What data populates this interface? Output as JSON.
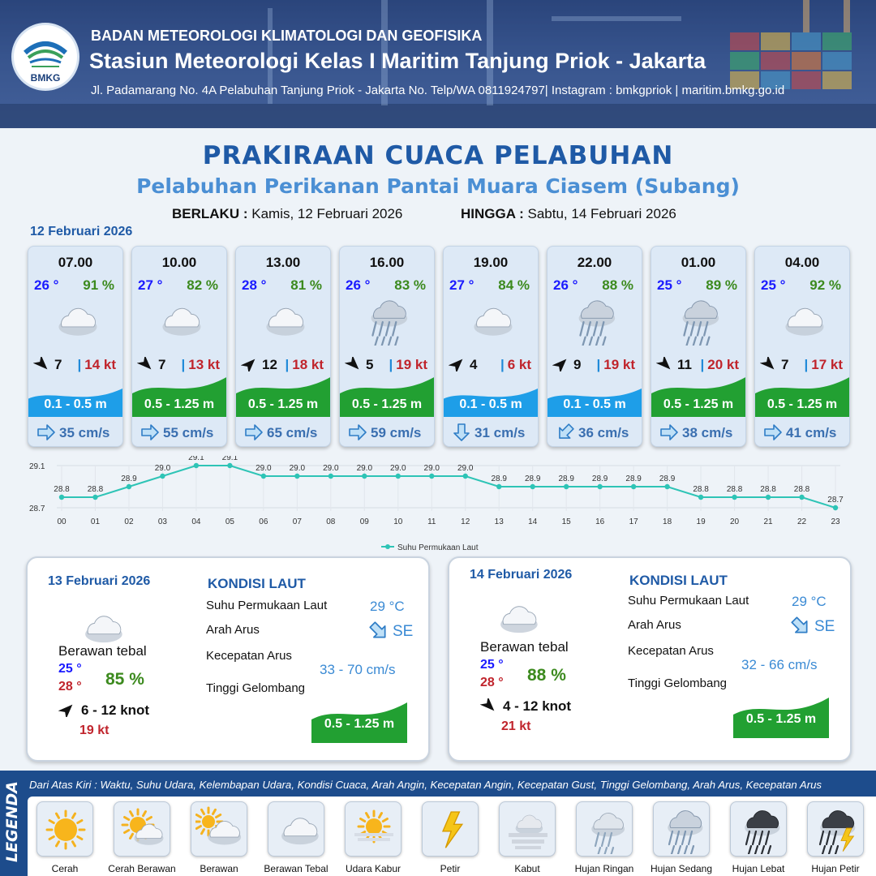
{
  "header": {
    "logo_text": "BMKG",
    "agency": "BADAN METEOROLOGI KLIMATOLOGI DAN GEOFISIKA",
    "station": "Stasiun Meteorologi Kelas I Maritim Tanjung Priok - Jakarta",
    "address": "Jl. Padamarang No. 4A Pelabuhan Tanjung Priok - Jakarta No. Telp/WA 0811924797| Instagram : bmkgpriok | maritim.bmkg.go.id"
  },
  "title": "PRAKIRAAN CUACA PELABUHAN",
  "subtitle": "Pelabuhan Perikanan Pantai Muara Ciasem (Subang)",
  "validity": {
    "from_label": "BERLAKU :",
    "from_value": "Kamis, 12 Februari 2026",
    "to_label": "HINGGA :",
    "to_value": "Sabtu, 14 Februari 2026"
  },
  "day1_date": "12 Februari 2026",
  "forecasts": [
    {
      "time": "07.00",
      "temp": "26 °",
      "humidity": "91 %",
      "icon": "berawan-tebal-icon",
      "wind_dir_deg": 45,
      "wind": "7",
      "gust": "14 kt",
      "wave": "0.1 - 0.5 m",
      "wave_level": "low",
      "current_dir_deg": 0,
      "current": "35 cm/s"
    },
    {
      "time": "10.00",
      "temp": "27 °",
      "humidity": "82 %",
      "icon": "berawan-tebal-icon",
      "wind_dir_deg": 45,
      "wind": "7",
      "gust": "13 kt",
      "wave": "0.5 - 1.25 m",
      "wave_level": "mid",
      "current_dir_deg": 0,
      "current": "55 cm/s"
    },
    {
      "time": "13.00",
      "temp": "28 °",
      "humidity": "81 %",
      "icon": "berawan-tebal-icon",
      "wind_dir_deg": -45,
      "wind": "12",
      "gust": "18 kt",
      "wave": "0.5 - 1.25 m",
      "wave_level": "mid",
      "current_dir_deg": 0,
      "current": "65 cm/s"
    },
    {
      "time": "16.00",
      "temp": "26 °",
      "humidity": "83 %",
      "icon": "hujan-sedang-icon",
      "wind_dir_deg": 45,
      "wind": "5",
      "gust": "19 kt",
      "wave": "0.5 - 1.25 m",
      "wave_level": "mid",
      "current_dir_deg": 0,
      "current": "59 cm/s"
    },
    {
      "time": "19.00",
      "temp": "27 °",
      "humidity": "84 %",
      "icon": "berawan-tebal-icon",
      "wind_dir_deg": -45,
      "wind": "4",
      "gust": "6 kt",
      "wave": "0.1 - 0.5 m",
      "wave_level": "low",
      "current_dir_deg": 90,
      "current": "31 cm/s"
    },
    {
      "time": "22.00",
      "temp": "26 °",
      "humidity": "88 %",
      "icon": "hujan-sedang-icon",
      "wind_dir_deg": -45,
      "wind": "9",
      "gust": "19 kt",
      "wave": "0.1 - 0.5 m",
      "wave_level": "low",
      "current_dir_deg": 135,
      "current": "36 cm/s"
    },
    {
      "time": "01.00",
      "temp": "25 °",
      "humidity": "89 %",
      "icon": "hujan-sedang-icon",
      "wind_dir_deg": 45,
      "wind": "11",
      "gust": "20 kt",
      "wave": "0.5 - 1.25 m",
      "wave_level": "mid",
      "current_dir_deg": 0,
      "current": "38 cm/s"
    },
    {
      "time": "04.00",
      "temp": "25 °",
      "humidity": "92 %",
      "icon": "berawan-tebal-icon",
      "wind_dir_deg": 45,
      "wind": "7",
      "gust": "17 kt",
      "wave": "0.5 - 1.25 m",
      "wave_level": "mid",
      "current_dir_deg": 0,
      "current": "41 cm/s"
    }
  ],
  "chart_data": {
    "type": "line",
    "x": [
      "00",
      "01",
      "02",
      "03",
      "04",
      "05",
      "06",
      "07",
      "08",
      "09",
      "10",
      "11",
      "12",
      "13",
      "14",
      "15",
      "16",
      "17",
      "18",
      "19",
      "20",
      "21",
      "22",
      "23"
    ],
    "series": [
      {
        "name": "Suhu Permukaan Laut",
        "values": [
          28.8,
          28.8,
          28.9,
          29.0,
          29.1,
          29.1,
          29.0,
          29.0,
          29.0,
          29.0,
          29.0,
          29.0,
          29.0,
          28.9,
          28.9,
          28.9,
          28.9,
          28.9,
          28.9,
          28.8,
          28.8,
          28.8,
          28.8,
          28.7
        ]
      }
    ],
    "data_labels": [
      "28.8",
      "28.8",
      "28.9",
      "29.0",
      "29.1",
      "29.1",
      "29.0",
      "29.0",
      "29.0",
      "29.0",
      "29.0",
      "29.0",
      "29.0",
      "28.9",
      "28.9",
      "28.9",
      "28.9",
      "28.9",
      "28.9",
      "28.8",
      "28.8",
      "28.8",
      "28.8",
      "28.7"
    ],
    "y_ticks": [
      "29.1",
      "28.7"
    ],
    "ylim": [
      28.7,
      29.1
    ],
    "grid": true,
    "legend_position": "bottom",
    "color": "#2ec4b6"
  },
  "days": [
    {
      "date": "13 Februari 2026",
      "condition": "Berawan tebal",
      "tmin": "25 °",
      "tmax": "28 °",
      "humidity": "85 %",
      "wind_dir_deg": -45,
      "wind": "6  - 12 knot",
      "gust": "19 kt",
      "kondisi_title": "KONDISI LAUT",
      "sst_label": "Suhu Permukaan Laut",
      "sst": "29 °C",
      "dir_label": "Arah Arus",
      "current_dir": "SE",
      "current_dir_deg": 45,
      "speed_label": "Kecepatan Arus",
      "speed": "33  - 70 cm/s",
      "wave_label": "Tinggi Gelombang",
      "wave": "0.5 - 1.25 m"
    },
    {
      "date": "14 Februari 2026",
      "condition": "Berawan tebal",
      "tmin": "25 °",
      "tmax": "28 °",
      "humidity": "88 %",
      "wind_dir_deg": 45,
      "wind": "4  - 12 knot",
      "gust": "21 kt",
      "kondisi_title": "KONDISI LAUT",
      "sst_label": "Suhu Permukaan Laut",
      "sst": "29 °C",
      "dir_label": "Arah Arus",
      "current_dir": "SE",
      "current_dir_deg": 45,
      "speed_label": "Kecepatan Arus",
      "speed": "32  - 66 cm/s",
      "wave_label": "Tinggi Gelombang",
      "wave": "0.5 - 1.25 m"
    }
  ],
  "legend": {
    "title": "LEGENDA",
    "description": "Dari Atas Kiri : Waktu, Suhu Udara, Kelembapan Udara, Kondisi Cuaca, Arah Angin, Kecepatan Angin, Kecepatan Gust, Tinggi Gelombang, Arah Arus, Kecepatan Arus",
    "items": [
      {
        "label": "Cerah",
        "icon": "cerah-icon"
      },
      {
        "label": "Cerah Berawan",
        "icon": "cerah-berawan-icon"
      },
      {
        "label": "Berawan",
        "icon": "berawan-icon"
      },
      {
        "label": "Berawan Tebal",
        "icon": "berawan-tebal-icon"
      },
      {
        "label": "Udara Kabur",
        "icon": "udara-kabur-icon"
      },
      {
        "label": "Petir",
        "icon": "petir-icon"
      },
      {
        "label": "Kabut",
        "icon": "kabut-icon"
      },
      {
        "label": "Hujan Ringan",
        "icon": "hujan-ringan-icon"
      },
      {
        "label": "Hujan Sedang",
        "icon": "hujan-sedang-icon"
      },
      {
        "label": "Hujan Lebat",
        "icon": "hujan-lebat-icon"
      },
      {
        "label": "Hujan Petir",
        "icon": "hujan-petir-icon"
      }
    ]
  },
  "colors": {
    "temp": "#1a1aff",
    "humidity": "#3c8a1e",
    "gust": "#c0242c",
    "wave_low": "#1e9ee8",
    "wave_mid": "#22a032",
    "title": "#1f5aa6",
    "sst_line": "#2ec4b6"
  }
}
